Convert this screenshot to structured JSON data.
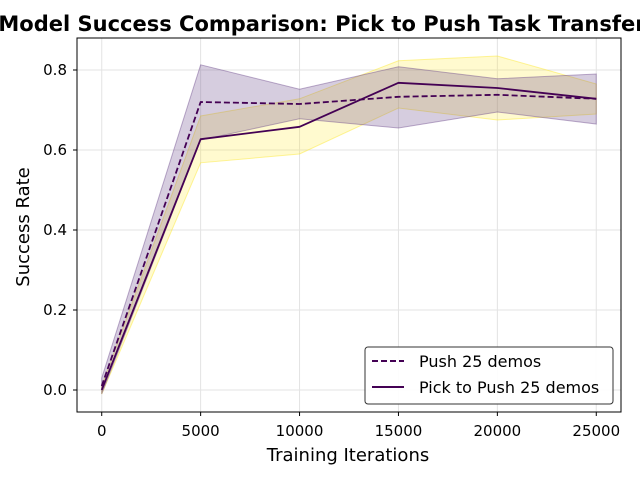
{
  "chart_data": {
    "type": "line",
    "title": "Model Success Comparison: Pick to Push Task Transfer",
    "xlabel": "Training Iterations",
    "ylabel": "Success Rate",
    "xlim": [
      -1250,
      26250
    ],
    "ylim": [
      -0.055,
      0.88
    ],
    "x_ticks": [
      0,
      5000,
      10000,
      15000,
      20000,
      25000
    ],
    "x_tick_labels": [
      "0",
      "5000",
      "10000",
      "15000",
      "20000",
      "25000"
    ],
    "y_ticks": [
      0.0,
      0.2,
      0.4,
      0.6,
      0.8
    ],
    "y_tick_labels": [
      "0.0",
      "0.2",
      "0.4",
      "0.6",
      "0.8"
    ],
    "grid": true,
    "legend_position": "lower-right",
    "x": [
      0,
      5000,
      10000,
      15000,
      20000,
      25000
    ],
    "series": [
      {
        "name": "Push 25 demos",
        "style": "dashed",
        "color": "#440154",
        "band_color": "#6c4a8c",
        "values": [
          0.01,
          0.72,
          0.715,
          0.733,
          0.738,
          0.728
        ],
        "band_lower": [
          -0.01,
          0.625,
          0.678,
          0.655,
          0.695,
          0.665
        ],
        "band_upper": [
          0.03,
          0.813,
          0.752,
          0.808,
          0.778,
          0.79
        ]
      },
      {
        "name": "Pick to Push 25 demos",
        "style": "solid",
        "color": "#440154",
        "band_color": "#fde725",
        "values": [
          0.0,
          0.627,
          0.658,
          0.768,
          0.755,
          0.728
        ],
        "band_lower": [
          -0.01,
          0.568,
          0.59,
          0.705,
          0.675,
          0.69
        ],
        "band_upper": [
          0.01,
          0.685,
          0.728,
          0.823,
          0.835,
          0.765
        ]
      }
    ]
  }
}
